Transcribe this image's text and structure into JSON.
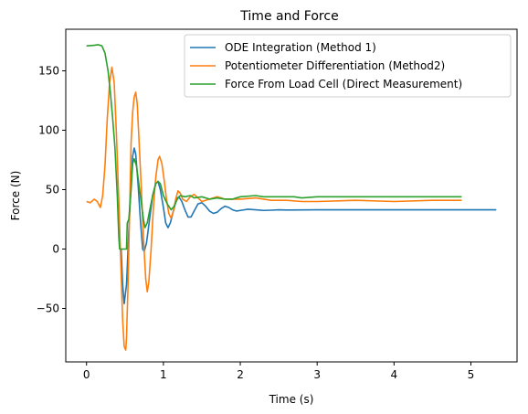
{
  "chart_data": {
    "type": "line",
    "title": "Time and Force",
    "xlabel": "Time (s)",
    "ylabel": "Force (N)",
    "xlim": [
      -0.27,
      5.6
    ],
    "ylim": [
      -95,
      185
    ],
    "xticks": [
      0,
      1,
      2,
      3,
      4,
      5
    ],
    "yticks": [
      -50,
      0,
      50,
      100,
      150
    ],
    "ytick_labels": [
      "−50",
      "0",
      "50",
      "100",
      "150"
    ],
    "grid": false,
    "legend_position": "top-right",
    "series": [
      {
        "name": "ODE Integration (Method 1)",
        "color": "#1f77b4",
        "points": [
          [
            0.45,
            0
          ],
          [
            0.47,
            -30
          ],
          [
            0.49,
            -46
          ],
          [
            0.52,
            -30
          ],
          [
            0.55,
            15
          ],
          [
            0.58,
            55
          ],
          [
            0.6,
            78
          ],
          [
            0.62,
            85
          ],
          [
            0.64,
            80
          ],
          [
            0.67,
            55
          ],
          [
            0.7,
            25
          ],
          [
            0.73,
            0
          ],
          [
            0.75,
            -2
          ],
          [
            0.78,
            5
          ],
          [
            0.82,
            25
          ],
          [
            0.86,
            45
          ],
          [
            0.9,
            55
          ],
          [
            0.93,
            57
          ],
          [
            0.96,
            50
          ],
          [
            1.0,
            35
          ],
          [
            1.03,
            22
          ],
          [
            1.06,
            18
          ],
          [
            1.09,
            22
          ],
          [
            1.13,
            32
          ],
          [
            1.17,
            42
          ],
          [
            1.2,
            44
          ],
          [
            1.24,
            40
          ],
          [
            1.28,
            33
          ],
          [
            1.32,
            27
          ],
          [
            1.36,
            27
          ],
          [
            1.4,
            32
          ],
          [
            1.45,
            38
          ],
          [
            1.5,
            39
          ],
          [
            1.55,
            36
          ],
          [
            1.6,
            32
          ],
          [
            1.65,
            30
          ],
          [
            1.7,
            31
          ],
          [
            1.75,
            34
          ],
          [
            1.8,
            36
          ],
          [
            1.85,
            35
          ],
          [
            1.9,
            33
          ],
          [
            1.95,
            32
          ],
          [
            2.0,
            32.5
          ],
          [
            2.1,
            33.5
          ],
          [
            2.2,
            33
          ],
          [
            2.3,
            32.5
          ],
          [
            2.4,
            32.7
          ],
          [
            2.5,
            33
          ],
          [
            2.6,
            32.8
          ],
          [
            3.0,
            33
          ],
          [
            4.0,
            33
          ],
          [
            5.33,
            33
          ]
        ]
      },
      {
        "name": "Potentiometer Differentiation (Method2)",
        "color": "#ff7f0e",
        "points": [
          [
            0,
            40
          ],
          [
            0.05,
            39
          ],
          [
            0.1,
            42
          ],
          [
            0.14,
            40
          ],
          [
            0.18,
            35
          ],
          [
            0.21,
            45
          ],
          [
            0.24,
            70
          ],
          [
            0.27,
            110
          ],
          [
            0.3,
            140
          ],
          [
            0.33,
            153
          ],
          [
            0.36,
            140
          ],
          [
            0.39,
            95
          ],
          [
            0.42,
            40
          ],
          [
            0.45,
            -20
          ],
          [
            0.47,
            -60
          ],
          [
            0.49,
            -82
          ],
          [
            0.51,
            -85
          ],
          [
            0.52,
            -75
          ],
          [
            0.54,
            -30
          ],
          [
            0.56,
            30
          ],
          [
            0.58,
            90
          ],
          [
            0.6,
            115
          ],
          [
            0.62,
            128
          ],
          [
            0.64,
            132
          ],
          [
            0.66,
            122
          ],
          [
            0.68,
            95
          ],
          [
            0.71,
            55
          ],
          [
            0.74,
            10
          ],
          [
            0.77,
            -25
          ],
          [
            0.79,
            -36
          ],
          [
            0.81,
            -28
          ],
          [
            0.84,
            0
          ],
          [
            0.87,
            35
          ],
          [
            0.9,
            60
          ],
          [
            0.93,
            75
          ],
          [
            0.95,
            78
          ],
          [
            0.98,
            72
          ],
          [
            1.01,
            58
          ],
          [
            1.04,
            42
          ],
          [
            1.07,
            30
          ],
          [
            1.1,
            26
          ],
          [
            1.13,
            32
          ],
          [
            1.16,
            42
          ],
          [
            1.19,
            49
          ],
          [
            1.22,
            47
          ],
          [
            1.25,
            42
          ],
          [
            1.3,
            40
          ],
          [
            1.35,
            44
          ],
          [
            1.4,
            46
          ],
          [
            1.45,
            43
          ],
          [
            1.5,
            40
          ],
          [
            1.6,
            42
          ],
          [
            1.7,
            44
          ],
          [
            1.8,
            42
          ],
          [
            2.0,
            42
          ],
          [
            2.2,
            43
          ],
          [
            2.4,
            41
          ],
          [
            2.6,
            41
          ],
          [
            2.8,
            40
          ],
          [
            3.0,
            40
          ],
          [
            3.5,
            41
          ],
          [
            4.0,
            40
          ],
          [
            4.5,
            41
          ],
          [
            4.88,
            41
          ]
        ]
      },
      {
        "name": "Force From Load Cell (Direct Measurement)",
        "color": "#2ca02c",
        "points": [
          [
            0,
            171
          ],
          [
            0.1,
            171.5
          ],
          [
            0.15,
            172
          ],
          [
            0.2,
            171
          ],
          [
            0.24,
            165
          ],
          [
            0.28,
            150
          ],
          [
            0.31,
            132
          ],
          [
            0.34,
            110
          ],
          [
            0.37,
            85
          ],
          [
            0.4,
            45
          ],
          [
            0.42,
            10
          ],
          [
            0.43,
            0
          ],
          [
            0.5,
            0
          ],
          [
            0.52,
            0
          ],
          [
            0.53,
            22
          ],
          [
            0.55,
            25
          ],
          [
            0.58,
            50
          ],
          [
            0.6,
            72
          ],
          [
            0.62,
            76
          ],
          [
            0.65,
            70
          ],
          [
            0.68,
            55
          ],
          [
            0.71,
            40
          ],
          [
            0.74,
            25
          ],
          [
            0.76,
            18
          ],
          [
            0.79,
            22
          ],
          [
            0.82,
            32
          ],
          [
            0.86,
            45
          ],
          [
            0.9,
            55
          ],
          [
            0.93,
            57
          ],
          [
            0.96,
            55
          ],
          [
            1.0,
            45
          ],
          [
            1.05,
            38
          ],
          [
            1.1,
            33
          ],
          [
            1.14,
            36
          ],
          [
            1.18,
            42
          ],
          [
            1.22,
            45
          ],
          [
            1.28,
            44
          ],
          [
            1.35,
            45
          ],
          [
            1.4,
            43
          ],
          [
            1.5,
            44
          ],
          [
            1.6,
            42
          ],
          [
            1.7,
            43
          ],
          [
            1.8,
            42
          ],
          [
            1.9,
            42
          ],
          [
            2.0,
            44
          ],
          [
            2.2,
            45
          ],
          [
            2.3,
            44
          ],
          [
            2.5,
            44
          ],
          [
            2.7,
            44
          ],
          [
            2.8,
            43
          ],
          [
            3.0,
            44
          ],
          [
            3.5,
            44
          ],
          [
            4.0,
            44
          ],
          [
            4.5,
            44
          ],
          [
            4.88,
            44
          ]
        ]
      }
    ]
  }
}
